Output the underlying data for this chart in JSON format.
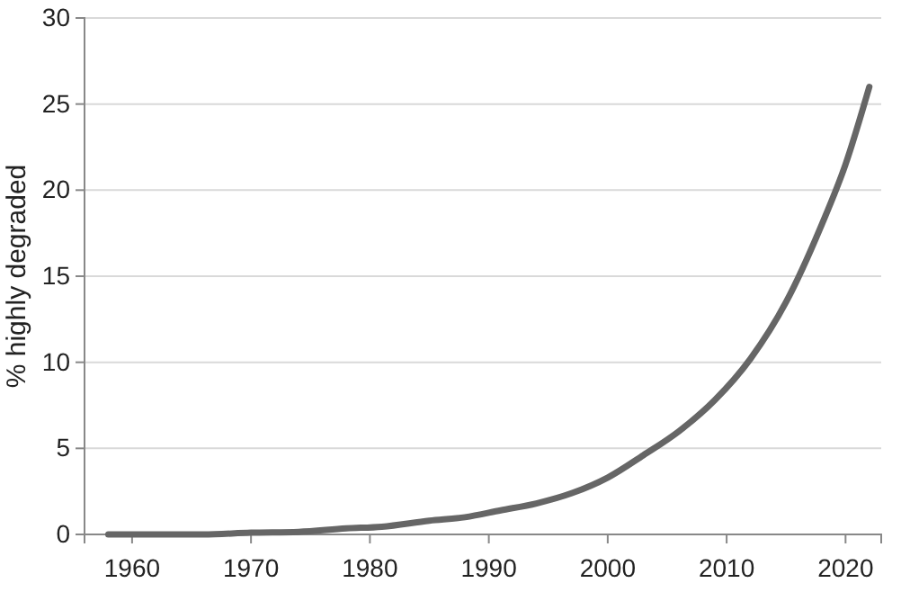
{
  "chart_data": {
    "type": "line",
    "ylabel": "% highly degraded",
    "x": [
      1958,
      1962,
      1966,
      1970,
      1974,
      1978,
      1981,
      1985,
      1988,
      1991,
      1994,
      1997,
      2000,
      2003,
      2006,
      2009,
      2012,
      2015,
      2018,
      2020,
      2022
    ],
    "values": [
      0,
      0,
      0,
      0.1,
      0.15,
      0.35,
      0.45,
      0.8,
      1.0,
      1.4,
      1.8,
      2.4,
      3.3,
      4.6,
      6.0,
      7.8,
      10.2,
      13.5,
      18,
      21.5,
      26
    ],
    "color": "#666666",
    "xlim": [
      1956,
      2023
    ],
    "xticks": [
      1960,
      1970,
      1980,
      1990,
      2000,
      2010,
      2020
    ],
    "ylim": [
      0,
      30
    ],
    "yticks": [
      0,
      5,
      10,
      15,
      20,
      25,
      30
    ],
    "grid": "y",
    "line_style": "solid",
    "marker": "none"
  }
}
